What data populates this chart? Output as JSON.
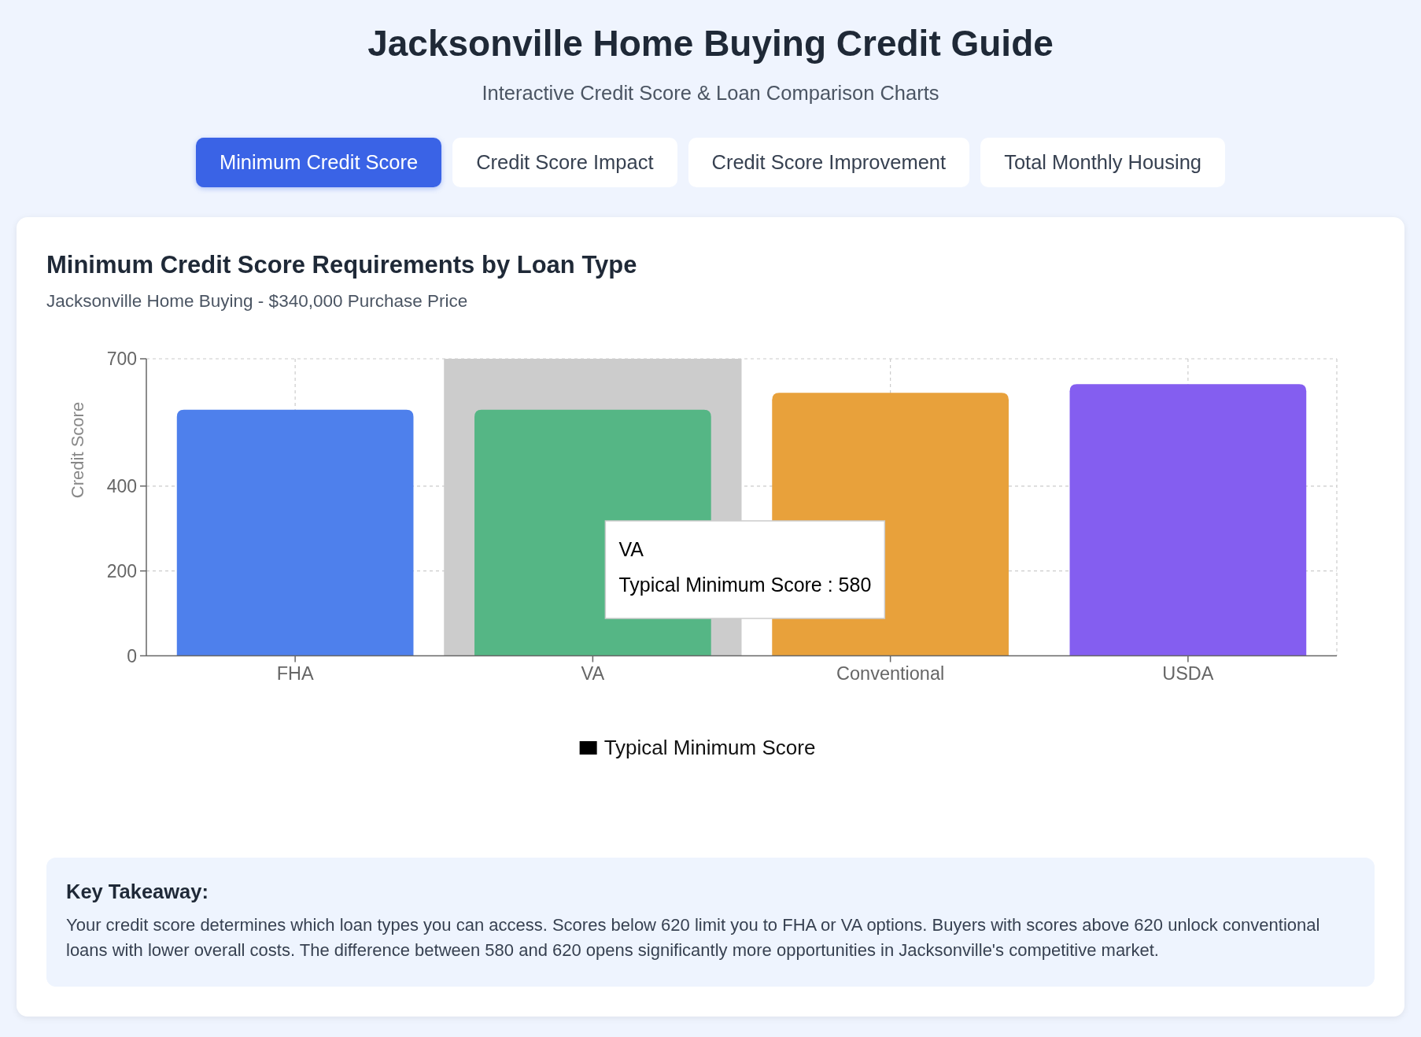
{
  "chart_data": {
    "type": "bar",
    "title": "Minimum Credit Score Requirements by Loan Type",
    "subtitle": "Jacksonville Home Buying - $340,000 Purchase Price",
    "ylabel": "Credit Score",
    "categories": [
      "FHA",
      "VA",
      "Conventional",
      "USDA"
    ],
    "series": [
      {
        "name": "Typical Minimum Score",
        "color": "#000000",
        "colors": [
          "#4e80ec",
          "#55b685",
          "#e8a13b",
          "#845ef0"
        ],
        "values": [
          580,
          580,
          620,
          640
        ]
      }
    ],
    "ylim": [
      0,
      700
    ],
    "yticks": [
      0,
      200,
      400,
      700
    ],
    "grid": true,
    "legend": "bottom",
    "bands": [
      {
        "axis": "x",
        "from": "VA",
        "to": "VA",
        "color": "#cccccc"
      }
    ],
    "annotations": [
      "Jacksonville Home Buying Credit Guide",
      "Interactive Credit Score & Loan Comparison Charts",
      "Minimum Credit Score",
      "Credit Score Impact",
      "Credit Score Improvement",
      "Total Monthly Housing",
      "Key Takeaway:",
      "Your credit score determines which loan types you can access. Scores below 620 limit you to FHA or VA options. Buyers with scores above 620 unlock conventional loans with lower overall costs. The difference between 580 and 620 opens significantly more opportunities in Jacksonville's competitive market.",
      "VA\nTypical Minimum Score : 580"
    ]
  }
}
